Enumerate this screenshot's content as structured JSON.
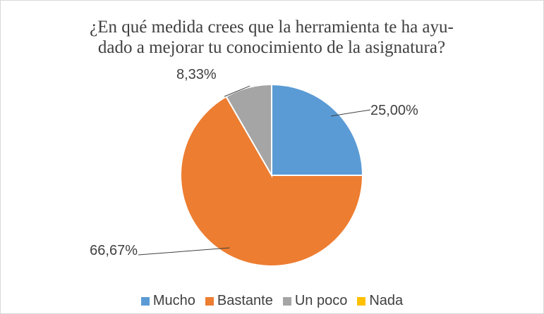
{
  "chart_data": {
    "type": "pie",
    "title_lines": [
      "¿En qué medida crees que la herramienta te ha ayu-",
      "dado a mejorar tu conocimiento de la asignatura?"
    ],
    "categories": [
      "Mucho",
      "Bastante",
      "Un poco",
      "Nada"
    ],
    "values": [
      25.0,
      66.67,
      8.33,
      0
    ],
    "data_labels": [
      "25,00%",
      "66,67%",
      "8,33%",
      ""
    ],
    "colors": [
      "#5b9bd5",
      "#ed7d31",
      "#a5a5a5",
      "#ffc000"
    ],
    "start_angle": "12 o'clock",
    "direction": "clockwise",
    "legend_position": "bottom"
  }
}
